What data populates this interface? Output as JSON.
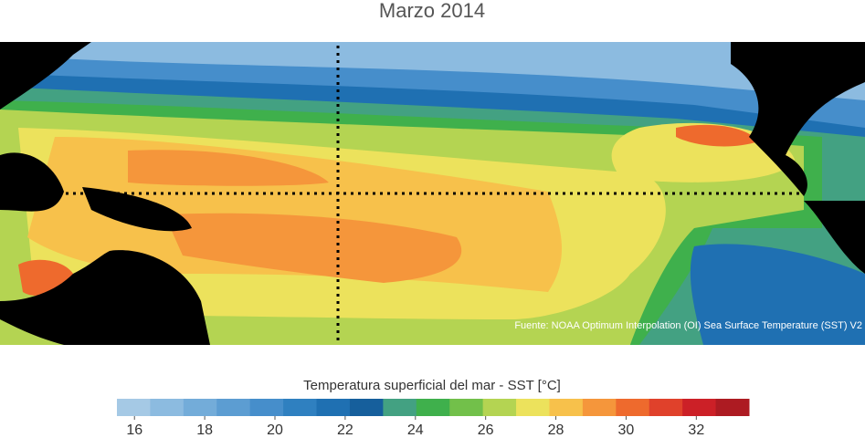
{
  "title": "Marzo 2014",
  "source": "Fuente: NOAA Optimum Interpolation (OI) Sea Surface Temperature (SST) V2",
  "colorbar": {
    "label": "Temperatura superficial del mar - SST  [°C]",
    "clim": [
      15.5,
      33.5
    ],
    "colors": [
      "#a5c9e5",
      "#8cbbe0",
      "#73acd9",
      "#5c9dd2",
      "#468ecb",
      "#2f80c0",
      "#1f70b2",
      "#165f9c",
      "#43a182",
      "#3fb04c",
      "#72c04a",
      "#b4d452",
      "#ece25c",
      "#f7c14b",
      "#f5963b",
      "#ee6a2d",
      "#e0412b",
      "#cc2027",
      "#ad1b22"
    ],
    "ticks": [
      16,
      18,
      20,
      22,
      24,
      26,
      28,
      30,
      32
    ]
  }
}
